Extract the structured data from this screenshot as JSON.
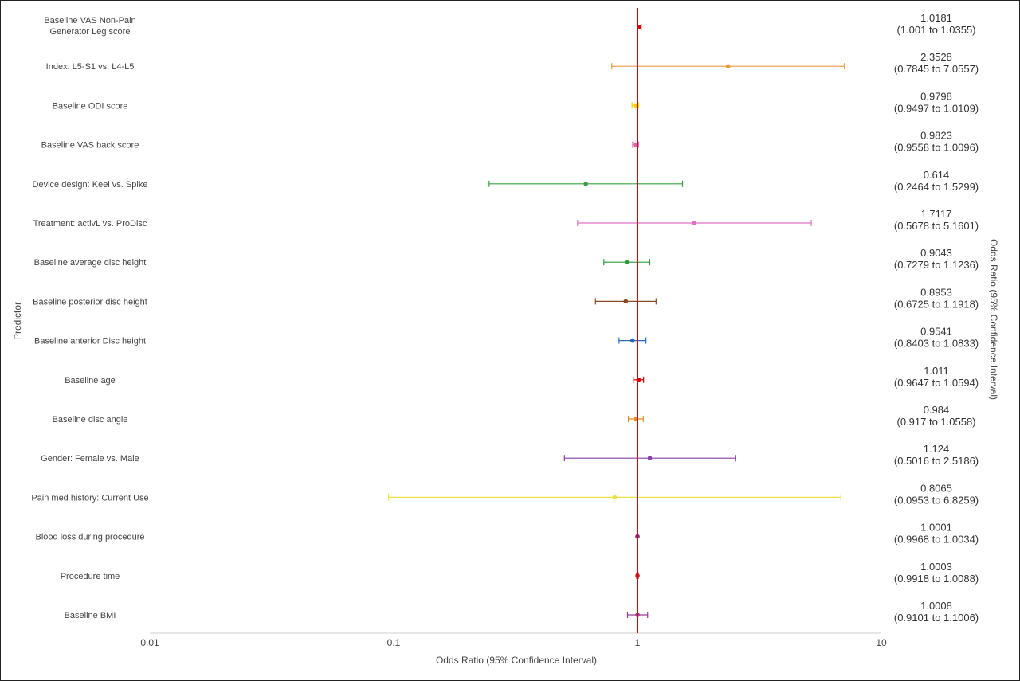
{
  "chart_data": {
    "type": "scatter",
    "subtype": "forest-plot",
    "xscale": "log",
    "xlim": [
      0.01,
      10
    ],
    "xticks": [
      "0.01",
      "0.1",
      "1",
      "10"
    ],
    "reference_line": 1,
    "reference_line_color": "#e00000",
    "xlabel": "Odds Ratio (95% Confidence Interval)",
    "ylabel": "Predictor",
    "right_label": "Odds Ratio (95% Confidence Interval)",
    "rows": [
      {
        "label": [
          "Baseline VAS Non-Pain",
          "Generator Leg score"
        ],
        "or": 1.0181,
        "lo": 1.001,
        "hi": 1.0355,
        "or_text": "1.0181",
        "ci_text": "(1.001 to 1.0355)",
        "color": "#e00000"
      },
      {
        "label": [
          "Index: L5-S1 vs. L4-L5"
        ],
        "or": 2.3528,
        "lo": 0.7845,
        "hi": 7.0557,
        "or_text": "2.3528",
        "ci_text": "(0.7845 to 7.0557)",
        "color": "#e89a40"
      },
      {
        "label": [
          "Baseline ODI score"
        ],
        "or": 0.9798,
        "lo": 0.9497,
        "hi": 1.0109,
        "or_text": "0.9798",
        "ci_text": "(0.9497 to 1.0109)",
        "color": "#f2d000"
      },
      {
        "label": [
          "Baseline VAS back score"
        ],
        "or": 0.9823,
        "lo": 0.9558,
        "hi": 1.0096,
        "or_text": "0.9823",
        "ci_text": "(0.9558 to 1.0096)",
        "color": "#e060b0"
      },
      {
        "label": [
          "Device design: Keel vs. Spike"
        ],
        "or": 0.614,
        "lo": 0.2464,
        "hi": 1.5299,
        "or_text": "0.614",
        "ci_text": "(0.2464 to 1.5299)",
        "color": "#3aa040"
      },
      {
        "label": [
          "Treatment: activL vs. ProDisc"
        ],
        "or": 1.7117,
        "lo": 0.5678,
        "hi": 5.1601,
        "or_text": "1.7117",
        "ci_text": "(0.5678 to 5.1601)",
        "color": "#e070c0"
      },
      {
        "label": [
          "Baseline average disc height"
        ],
        "or": 0.9043,
        "lo": 0.7279,
        "hi": 1.1236,
        "or_text": "0.9043",
        "ci_text": "(0.7279 to 1.1236)",
        "color": "#2a9a3a"
      },
      {
        "label": [
          "Baseline posterior disc height"
        ],
        "or": 0.8953,
        "lo": 0.6725,
        "hi": 1.1918,
        "or_text": "0.8953",
        "ci_text": "(0.6725 to 1.1918)",
        "color": "#8a4a20"
      },
      {
        "label": [
          "Baseline anterior Disc height"
        ],
        "or": 0.9541,
        "lo": 0.8403,
        "hi": 1.0833,
        "or_text": "0.9541",
        "ci_text": "(0.8403 to 1.0833)",
        "color": "#2a6ab0"
      },
      {
        "label": [
          "Baseline age"
        ],
        "or": 1.011,
        "lo": 0.9647,
        "hi": 1.0594,
        "or_text": "1.011",
        "ci_text": "(0.9647 to 1.0594)",
        "color": "#e00000"
      },
      {
        "label": [
          "Baseline disc angle"
        ],
        "or": 0.984,
        "lo": 0.917,
        "hi": 1.0558,
        "or_text": "0.984",
        "ci_text": "(0.917 to 1.0558)",
        "color": "#e88a20"
      },
      {
        "label": [
          "Gender: Female vs. Male"
        ],
        "or": 1.124,
        "lo": 0.5016,
        "hi": 2.5186,
        "or_text": "1.124",
        "ci_text": "(0.5016 to 2.5186)",
        "color": "#8a40a8"
      },
      {
        "label": [
          "Pain med history: Current Use"
        ],
        "or": 0.8065,
        "lo": 0.0953,
        "hi": 6.8259,
        "or_text": "0.8065",
        "ci_text": "(0.0953 to 6.8259)",
        "color": "#f0e040"
      },
      {
        "label": [
          "Blood loss during procedure"
        ],
        "or": 1.0001,
        "lo": 0.9968,
        "hi": 1.0034,
        "or_text": "1.0001",
        "ci_text": "(0.9968 to 1.0034)",
        "color": "#6a2a8a"
      },
      {
        "label": [
          "Procedure time"
        ],
        "or": 1.0003,
        "lo": 0.9918,
        "hi": 1.0088,
        "or_text": "1.0003",
        "ci_text": "(0.9918 to 1.0088)",
        "color": "#c02020"
      },
      {
        "label": [
          "Baseline BMI"
        ],
        "or": 1.0008,
        "lo": 0.9101,
        "hi": 1.1006,
        "or_text": "1.0008",
        "ci_text": "(0.9101 to 1.1006)",
        "color": "#9a3a9a"
      }
    ]
  }
}
